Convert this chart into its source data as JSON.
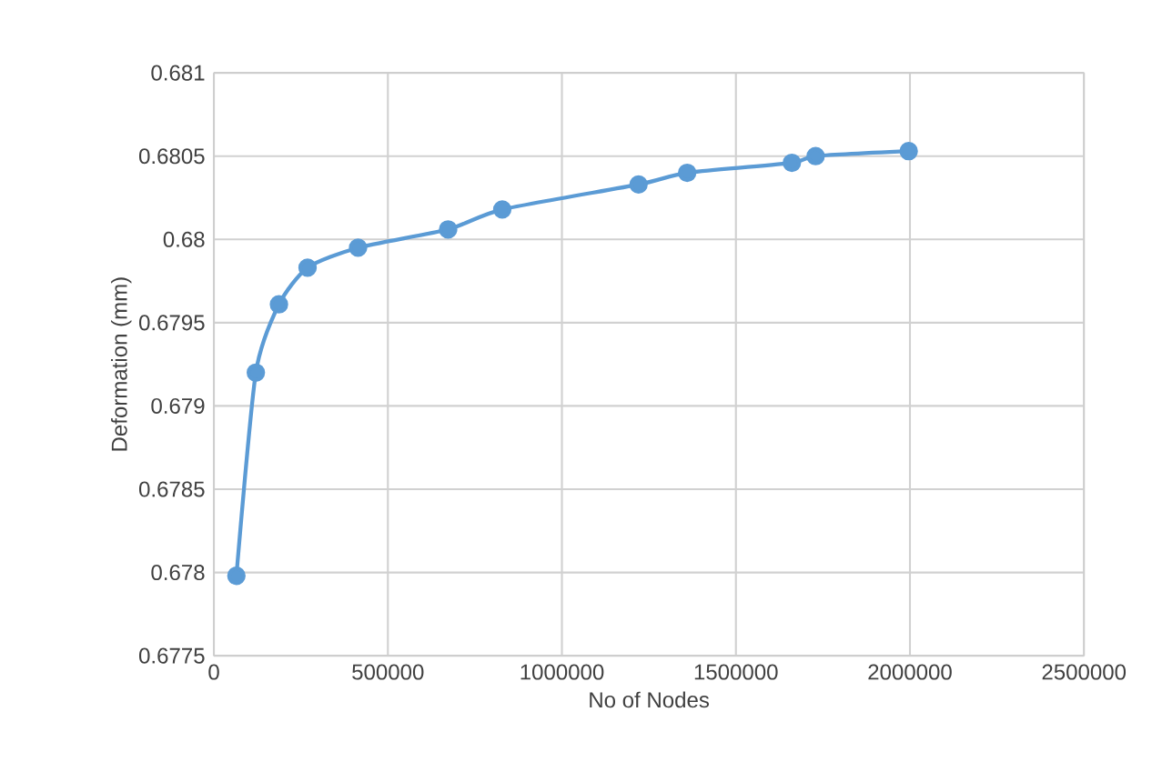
{
  "chart_data": {
    "type": "line",
    "xlabel": "No of Nodes",
    "ylabel": "Deformation (mm)",
    "x": [
      64700,
      120600,
      187000,
      269200,
      414300,
      673000,
      828700,
      1220300,
      1360000,
      1660800,
      1729000,
      1996500
    ],
    "series": [
      {
        "color": "#5b9bd5",
        "values": [
          0.67798,
          0.6792,
          0.67961,
          0.67983,
          0.67995,
          0.68006,
          0.68018,
          0.68033,
          0.6804,
          0.68046,
          0.6805,
          0.68053
        ]
      }
    ],
    "xlim": [
      0,
      2500000
    ],
    "xticks": [
      0,
      500000,
      1000000,
      1500000,
      2000000,
      2500000
    ],
    "ylim": [
      0.6775,
      0.681
    ],
    "yticks": [
      0.6775,
      0.678,
      0.6785,
      0.679,
      0.6795,
      0.68,
      0.6805,
      0.681
    ],
    "grid": true,
    "marker": "circle",
    "line_style": "solid"
  }
}
